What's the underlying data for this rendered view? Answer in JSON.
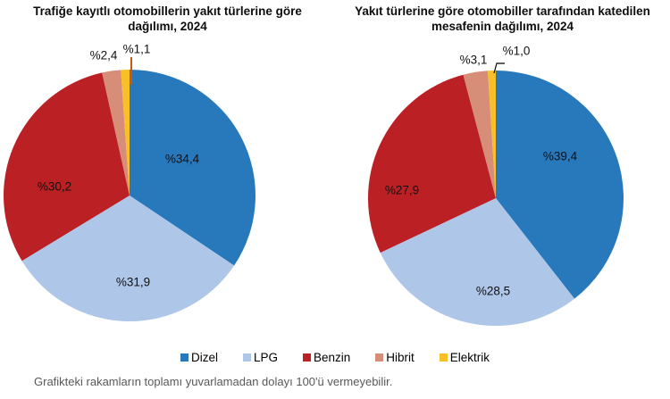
{
  "charts": [
    {
      "title_line1": "Trafiğe kayıtlı otomobillerin yakıt türlerine göre",
      "title_line2": "dağılımı, 2024",
      "leader_line_color": "#C55A11"
    },
    {
      "title_line1": "Yakıt türlerine göre otomobiller tarafından katedilen",
      "title_line2": "mesafenin dağılımı, 2024",
      "leader_line_color": "#000000"
    }
  ],
  "legend": {
    "items": [
      {
        "label": "Dizel",
        "color": "#2878BC"
      },
      {
        "label": "LPG",
        "color": "#AEC6E8"
      },
      {
        "label": "Benzin",
        "color": "#BB2025"
      },
      {
        "label": "Hibrit",
        "color": "#D78E79"
      },
      {
        "label": "Elektrik",
        "color": "#F8BF27"
      }
    ]
  },
  "footnote": "Grafikteki rakamların toplamı yuvarlamadan dolayı 100'ü vermeyebilir.",
  "chart_data": [
    {
      "type": "pie",
      "title": "Trafiğe kayıtlı otomobillerin yakıt türlerine göre dağılımı, 2024",
      "categories": [
        "Dizel",
        "LPG",
        "Benzin",
        "Hibrit",
        "Elektrik"
      ],
      "values": [
        34.4,
        31.9,
        30.2,
        2.4,
        1.1
      ],
      "point_labels": [
        "%34,4",
        "%31,9",
        "%30,2",
        "%2,4",
        "%1,1"
      ],
      "colors": [
        "#2878BC",
        "#AEC6E8",
        "#BB2025",
        "#D78E79",
        "#F8BF27"
      ],
      "start_angle_deg": -90,
      "direction": "clockwise",
      "legend_position": "bottom"
    },
    {
      "type": "pie",
      "title": "Yakıt türlerine göre otomobiller tarafından katedilen mesafenin dağılımı, 2024",
      "categories": [
        "Dizel",
        "LPG",
        "Benzin",
        "Hibrit",
        "Elektrik"
      ],
      "values": [
        39.4,
        28.5,
        27.9,
        3.1,
        1.0
      ],
      "point_labels": [
        "%39,4",
        "%28,5",
        "%27,9",
        "%3,1",
        "%1,0"
      ],
      "colors": [
        "#2878BC",
        "#AEC6E8",
        "#BB2025",
        "#D78E79",
        "#F8BF27"
      ],
      "start_angle_deg": -90,
      "direction": "clockwise",
      "legend_position": "bottom"
    }
  ]
}
